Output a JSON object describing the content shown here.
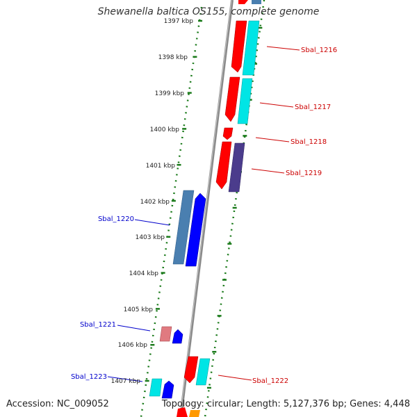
{
  "header": {
    "title": "Shewanella baltica OS155, complete genome"
  },
  "footer": {
    "accession": "Accession: NC_009052",
    "summary": "Topology: circular; Length: 5,127,376 bp; Genes: 4,448"
  },
  "scale_labels": [
    "1397 kbp",
    "1398 kbp",
    "1399 kbp",
    "1400 kbp",
    "1401 kbp",
    "1402 kbp",
    "1403 kbp",
    "1404 kbp",
    "1405 kbp",
    "1406 kbp",
    "1407 kbp"
  ],
  "gene_labels": {
    "sbal_1216": "Sbal_1216",
    "sbal_1217": "Sbal_1217",
    "sbal_1218": "Sbal_1218",
    "sbal_1219": "Sbal_1219",
    "sbal_1220": "Sbal_1220",
    "sbal_1221": "Sbal_1221",
    "sbal_1222": "Sbal_1222",
    "sbal_1223": "Sbal_1223"
  },
  "colors": {
    "forward_label": "#cc0000",
    "reverse_label": "#0000cc",
    "cds_forward": "#ff0000",
    "cds_reverse": "#0000ff",
    "feature_cyan": "#00e5e5",
    "feature_steel": "#4a7fb0",
    "feature_purple": "#4b3c8c",
    "feature_pink": "#e07a80",
    "feature_orange": "#ff9900",
    "tick": "#1a7a1a",
    "backbone": "#888888"
  }
}
